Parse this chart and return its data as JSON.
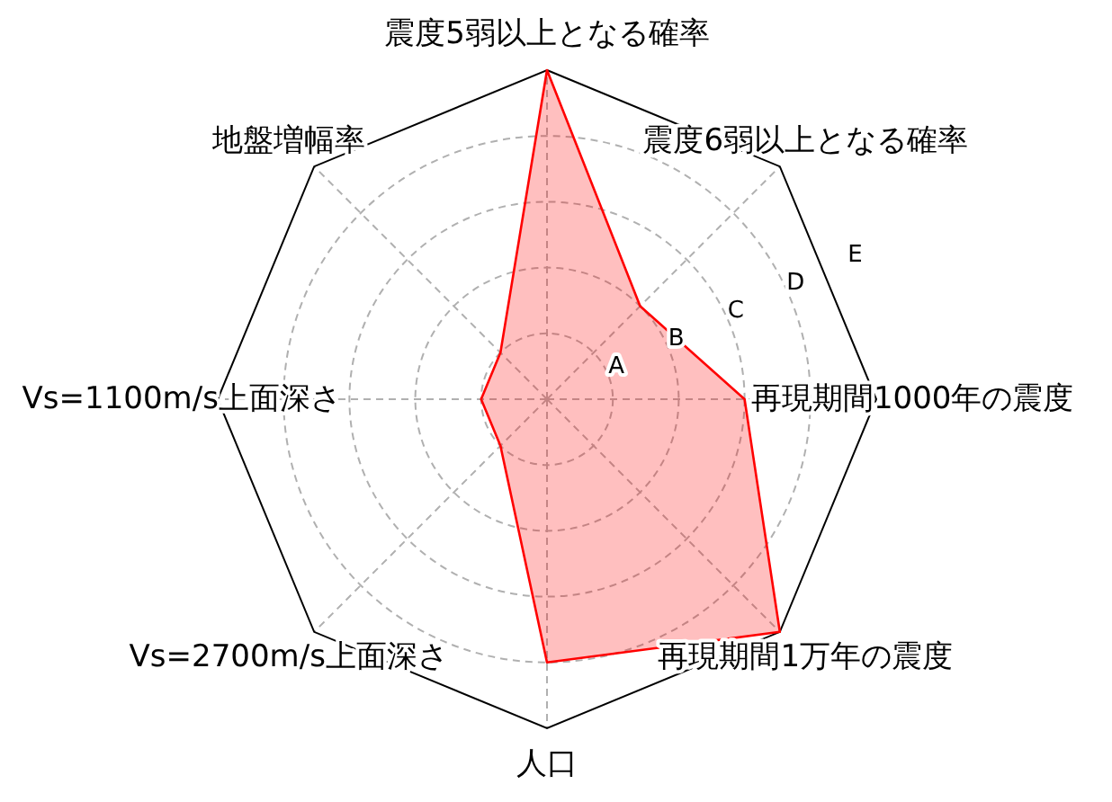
{
  "chart_data": {
    "type": "radar",
    "categories": [
      "震度5弱以上となる確率",
      "震度6弱以上となる確率",
      "再現期間1000年の震度",
      "再現期間1万年の震度",
      "人口",
      "Vs=2700m/s上面深さ",
      "Vs=1100m/s上面深さ",
      "地盤増幅率"
    ],
    "series": [
      {
        "color": "#ff0000",
        "values": [
          5,
          2,
          3,
          5,
          4,
          1,
          1,
          1
        ]
      }
    ],
    "ylim": [
      0,
      5
    ],
    "yticks": [
      {
        "value": 1,
        "label": "A"
      },
      {
        "value": 2,
        "label": "B"
      },
      {
        "value": 3,
        "label": "C"
      },
      {
        "value": 4,
        "label": "D"
      },
      {
        "value": 5,
        "label": "E"
      }
    ],
    "grid": true
  }
}
